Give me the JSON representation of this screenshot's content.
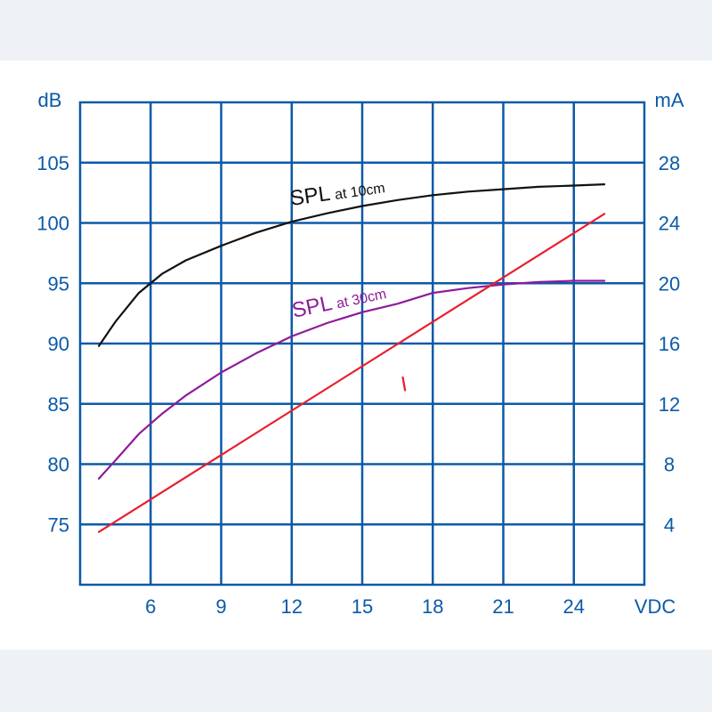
{
  "chart_data": {
    "type": "line",
    "xlabel": "VDC",
    "y_left_label": "dB",
    "y_right_label": "mA",
    "x_ticks": [
      6,
      9,
      12,
      15,
      18,
      21,
      24
    ],
    "xlim": [
      3,
      27
    ],
    "y_left_ticks": [
      75,
      80,
      85,
      90,
      95,
      100,
      105
    ],
    "y_left_lim": [
      70,
      110
    ],
    "y_right_ticks": [
      4,
      8,
      12,
      16,
      20,
      24,
      28
    ],
    "y_right_lim": [
      0,
      32
    ],
    "grid": true,
    "legend": "none",
    "series": [
      {
        "name": "SPL at 10cm",
        "label_main": "SPL",
        "label_sub": "at 10cm",
        "axis": "left",
        "color": "#111111",
        "x": [
          3.8,
          4.5,
          5.5,
          6.5,
          7.5,
          9,
          10.5,
          12,
          13.5,
          15,
          16.5,
          18,
          19.5,
          21,
          22.5,
          24,
          25.3
        ],
        "y": [
          89.8,
          91.8,
          94.2,
          95.8,
          96.9,
          98.1,
          99.2,
          100.1,
          100.8,
          101.4,
          101.9,
          102.3,
          102.6,
          102.8,
          103.0,
          103.1,
          103.2
        ]
      },
      {
        "name": "SPL at 30cm",
        "label_main": "SPL",
        "label_sub": "at 30cm",
        "axis": "left",
        "color": "#8e1b9a",
        "x": [
          3.8,
          4.5,
          5.5,
          6.5,
          7.5,
          9,
          10.5,
          12,
          13.5,
          15,
          16.5,
          18,
          19.5,
          21,
          22.5,
          24,
          25.3
        ],
        "y": [
          78.8,
          80.3,
          82.5,
          84.2,
          85.7,
          87.6,
          89.2,
          90.6,
          91.7,
          92.6,
          93.3,
          94.2,
          94.6,
          94.9,
          95.1,
          95.2,
          95.2
        ]
      },
      {
        "name": "I",
        "label_main": "I",
        "label_sub": "",
        "axis": "right",
        "color": "#e8202e",
        "x": [
          3.8,
          25.3
        ],
        "y": [
          3.5,
          24.6
        ]
      }
    ]
  }
}
